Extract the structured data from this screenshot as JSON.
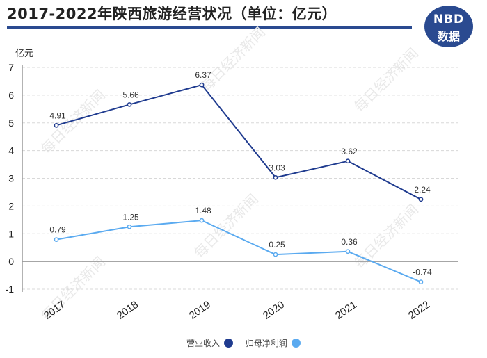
{
  "title": "2017-2022年陕西旅游经营状况（单位：亿元）",
  "logo": {
    "line1": "NBD",
    "line2": "数据"
  },
  "watermark": "每日经济新闻",
  "chart_data": {
    "type": "line",
    "categories": [
      "2017",
      "2018",
      "2019",
      "2020",
      "2021",
      "2022"
    ],
    "y_unit_label": "亿元",
    "ylim": [
      -1,
      7
    ],
    "yticks": [
      "7",
      "6",
      "5",
      "4",
      "3",
      "2",
      "1",
      "0",
      "-1"
    ],
    "grid": true,
    "legend_position": "bottom",
    "series": [
      {
        "name": "营业收入",
        "color": "#1f3b8f",
        "values": [
          4.91,
          5.66,
          6.37,
          3.03,
          3.62,
          2.24
        ],
        "labels": [
          "4.91",
          "5.66",
          "6.37",
          "3.03",
          "3.62",
          "2.24"
        ]
      },
      {
        "name": "归母净利润",
        "color": "#5aaaf0",
        "values": [
          0.79,
          1.25,
          1.48,
          0.25,
          0.36,
          -0.74
        ],
        "labels": [
          "0.79",
          "1.25",
          "1.48",
          "0.25",
          "0.36",
          "-0.74"
        ]
      }
    ]
  }
}
